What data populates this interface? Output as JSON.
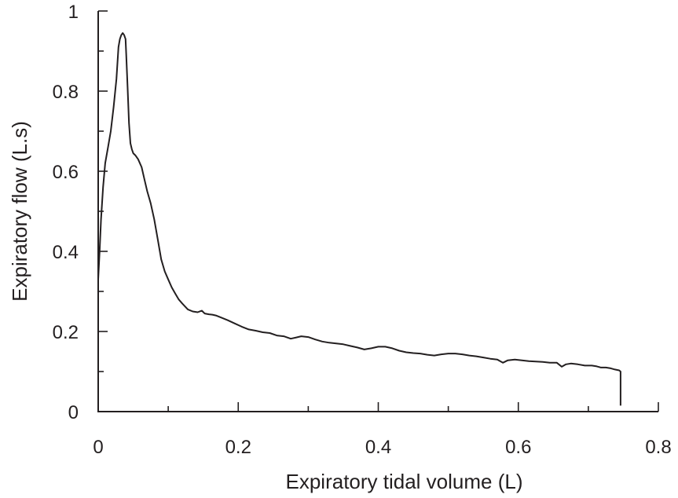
{
  "chart_data": {
    "type": "line",
    "title": "",
    "xlabel": "Expiratory tidal volume (L)",
    "ylabel": "Expiratory flow (L.s)",
    "xlim": [
      0,
      0.8
    ],
    "ylim": [
      0,
      1
    ],
    "x_ticks": [
      "0",
      "0.2",
      "0.4",
      "0.6",
      "0.8"
    ],
    "y_ticks": [
      "0",
      "0.2",
      "0.4",
      "0.6",
      "0.8",
      "1"
    ],
    "x_tick_values": [
      0,
      0.2,
      0.4,
      0.6,
      0.8
    ],
    "y_tick_values": [
      0,
      0.2,
      0.4,
      0.6,
      0.8,
      1.0
    ],
    "x_minor_ticks": [
      0.1,
      0.3,
      0.5,
      0.7
    ],
    "y_minor_ticks": [
      0.1,
      0.3,
      0.5,
      0.7,
      0.9
    ],
    "grid": false,
    "color": "#231f20",
    "series": [
      {
        "x": [
          0.0,
          0.002,
          0.004,
          0.007,
          0.01,
          0.014,
          0.018,
          0.022,
          0.026,
          0.029,
          0.031,
          0.033,
          0.035,
          0.037,
          0.039,
          0.04,
          0.042,
          0.044,
          0.046,
          0.048,
          0.05,
          0.053,
          0.057,
          0.062,
          0.066,
          0.07,
          0.075,
          0.08,
          0.085,
          0.09,
          0.095,
          0.1,
          0.105,
          0.11,
          0.115,
          0.12,
          0.128,
          0.135,
          0.142,
          0.148,
          0.152,
          0.158,
          0.163,
          0.168,
          0.175,
          0.185,
          0.195,
          0.205,
          0.215,
          0.225,
          0.235,
          0.245,
          0.255,
          0.265,
          0.275,
          0.283,
          0.29,
          0.3,
          0.31,
          0.32,
          0.33,
          0.34,
          0.35,
          0.36,
          0.37,
          0.38,
          0.39,
          0.4,
          0.41,
          0.42,
          0.43,
          0.44,
          0.45,
          0.46,
          0.47,
          0.48,
          0.49,
          0.5,
          0.51,
          0.52,
          0.53,
          0.54,
          0.55,
          0.56,
          0.57,
          0.578,
          0.585,
          0.595,
          0.605,
          0.615,
          0.625,
          0.635,
          0.645,
          0.655,
          0.662,
          0.668,
          0.675,
          0.685,
          0.695,
          0.705,
          0.712,
          0.718,
          0.725,
          0.732,
          0.738,
          0.744,
          0.746,
          0.746
        ],
        "values": [
          0.33,
          0.4,
          0.48,
          0.56,
          0.62,
          0.66,
          0.7,
          0.76,
          0.83,
          0.91,
          0.93,
          0.94,
          0.945,
          0.94,
          0.93,
          0.89,
          0.81,
          0.72,
          0.67,
          0.655,
          0.645,
          0.64,
          0.63,
          0.61,
          0.58,
          0.55,
          0.52,
          0.48,
          0.43,
          0.38,
          0.35,
          0.33,
          0.31,
          0.295,
          0.28,
          0.27,
          0.255,
          0.25,
          0.248,
          0.252,
          0.245,
          0.243,
          0.242,
          0.24,
          0.235,
          0.228,
          0.22,
          0.212,
          0.205,
          0.202,
          0.198,
          0.196,
          0.19,
          0.188,
          0.182,
          0.185,
          0.188,
          0.186,
          0.18,
          0.175,
          0.172,
          0.17,
          0.168,
          0.164,
          0.16,
          0.155,
          0.158,
          0.162,
          0.162,
          0.158,
          0.152,
          0.148,
          0.146,
          0.145,
          0.142,
          0.14,
          0.143,
          0.145,
          0.145,
          0.143,
          0.14,
          0.138,
          0.135,
          0.132,
          0.13,
          0.122,
          0.128,
          0.13,
          0.128,
          0.126,
          0.125,
          0.124,
          0.122,
          0.122,
          0.112,
          0.118,
          0.12,
          0.118,
          0.115,
          0.115,
          0.113,
          0.11,
          0.11,
          0.108,
          0.105,
          0.103,
          0.1,
          0.015
        ]
      }
    ]
  }
}
